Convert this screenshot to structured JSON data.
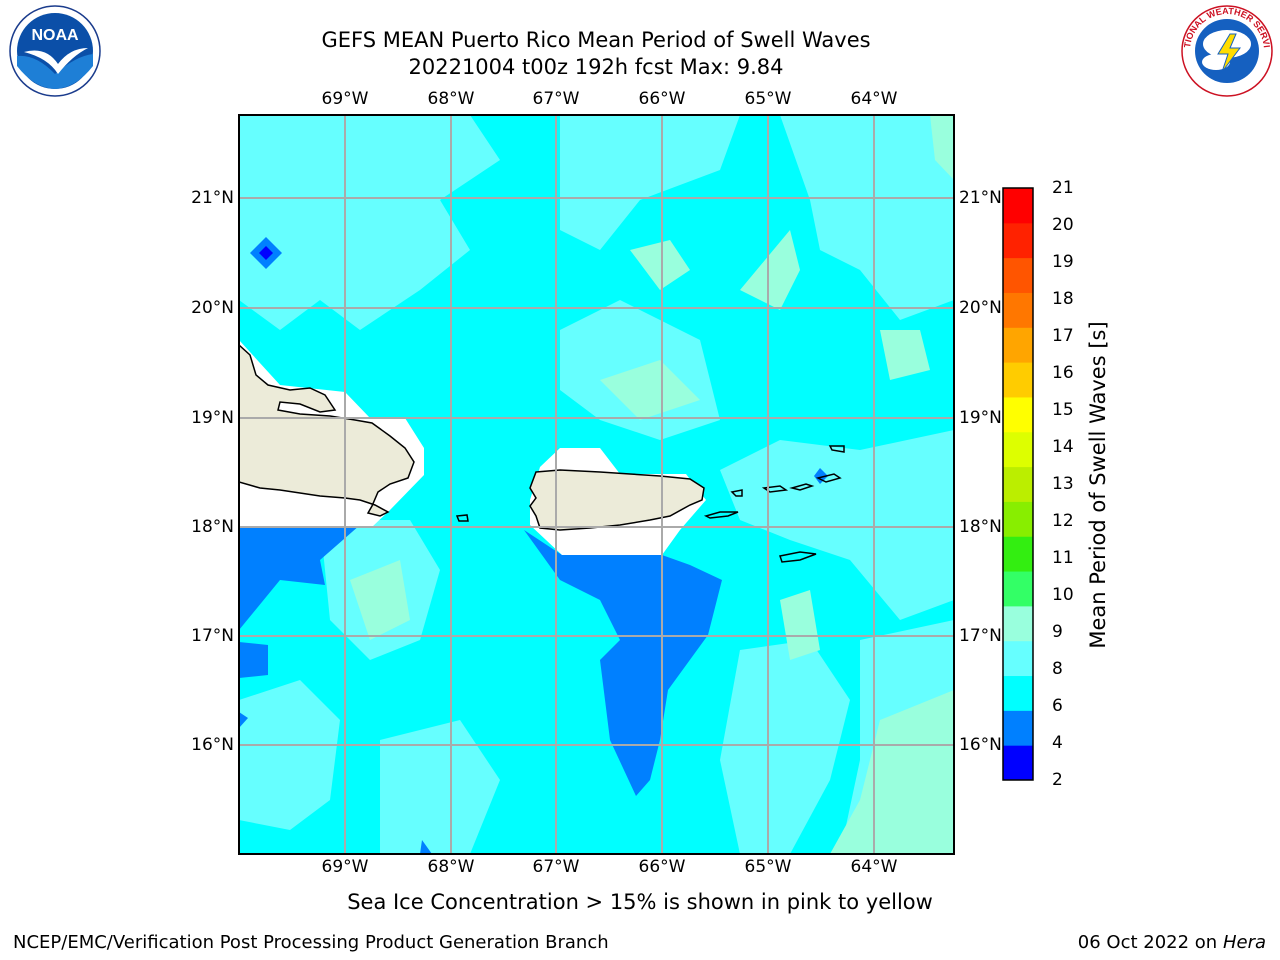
{
  "title": {
    "line1": "GEFS MEAN Puerto Rico Mean Period of Swell Waves",
    "line2": "20221004 t00z 192h fcst   Max: 9.84"
  },
  "axes": {
    "longitude_labels": [
      "69°W",
      "68°W",
      "67°W",
      "66°W",
      "65°W",
      "64°W"
    ],
    "latitude_labels": [
      "21°N",
      "20°N",
      "19°N",
      "18°N",
      "17°N",
      "16°N"
    ]
  },
  "colorbar": {
    "label": "Mean Period of Swell Waves [s]",
    "ticks": [
      "21",
      "20",
      "19",
      "18",
      "17",
      "16",
      "15",
      "14",
      "13",
      "12",
      "11",
      "10",
      "9",
      "8",
      "6",
      "4",
      "2"
    ],
    "colors": [
      "#0000ff",
      "#0080ff",
      "#00ffff",
      "#66ffff",
      "#99ffdd",
      "#33ff66",
      "#33ee11",
      "#88ee00",
      "#bbee00",
      "#ddff00",
      "#ffff00",
      "#ffcc00",
      "#ffa500",
      "#ff7700",
      "#ff5500",
      "#ff2200",
      "#ff0000"
    ]
  },
  "note": "Sea Ice Concentration > 15% is shown in pink to yellow",
  "footer": {
    "left": "NCEP/EMC/Verification Post Processing Product Generation Branch",
    "date": "06 Oct 2022 on",
    "machine": "Hera"
  },
  "logos": {
    "left_icon": "noaa-logo",
    "left_text": "NOAA",
    "right_icon": "national-weather-service-logo",
    "right_text": "NATIONAL WEATHER SERVICE"
  }
}
